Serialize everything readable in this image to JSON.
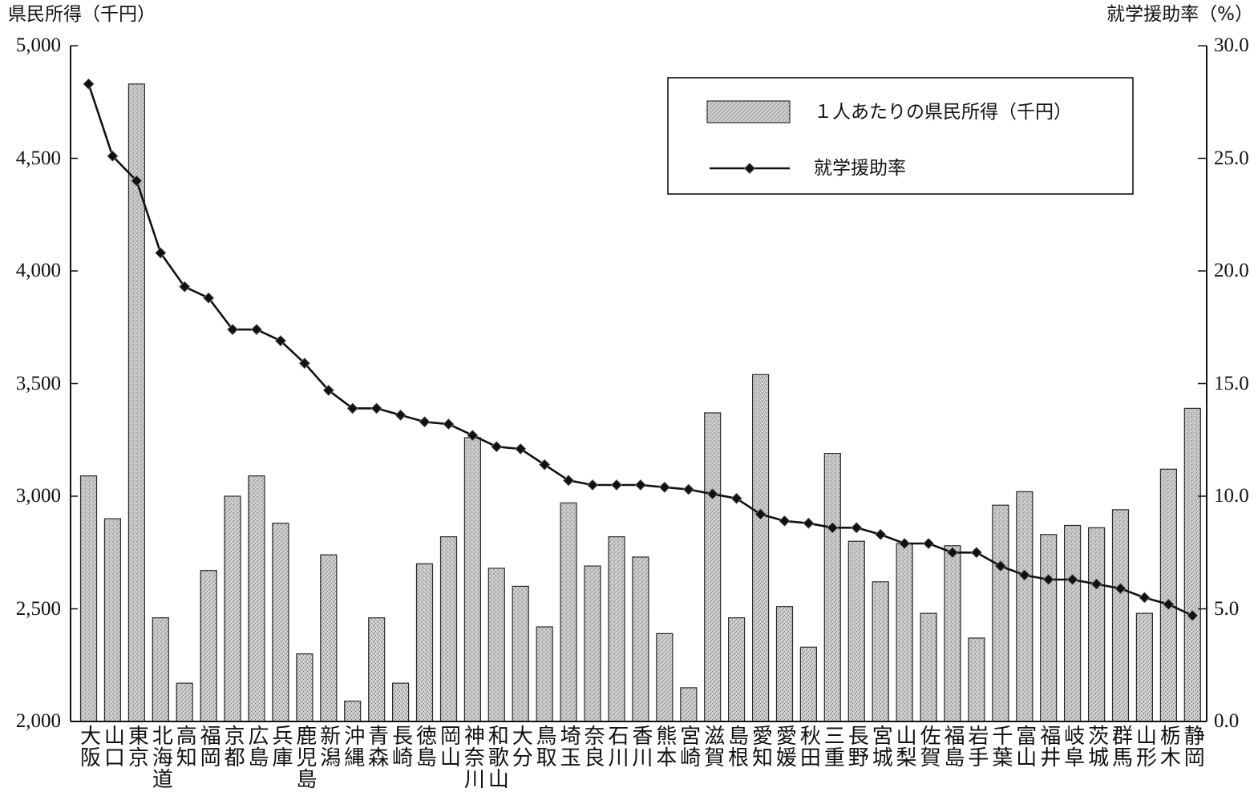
{
  "chart_data": {
    "type": "bar",
    "categories": [
      "大阪",
      "山口",
      "東京",
      "北海道",
      "高知",
      "福岡",
      "京都",
      "広島",
      "兵庫",
      "鹿児島",
      "新潟",
      "沖縄",
      "青森",
      "長崎",
      "徳島",
      "岡山",
      "神奈川",
      "和歌山",
      "大分",
      "鳥取",
      "埼玉",
      "奈良",
      "石川",
      "香川",
      "熊本",
      "宮崎",
      "滋賀",
      "島根",
      "愛知",
      "愛媛",
      "秋田",
      "三重",
      "長野",
      "宮城",
      "山梨",
      "佐賀",
      "福島",
      "岩手",
      "千葉",
      "富山",
      "福井",
      "岐阜",
      "茨城",
      "群馬",
      "山形",
      "栃木",
      "静岡"
    ],
    "series": [
      {
        "name": "１人あたりの県民所得（千円）",
        "type": "bar",
        "axis": "left",
        "values": [
          3090,
          2900,
          4830,
          2460,
          2170,
          2670,
          3000,
          3090,
          2880,
          2300,
          2740,
          2090,
          2460,
          2170,
          2700,
          2820,
          3260,
          2680,
          2600,
          2420,
          2970,
          2690,
          2820,
          2730,
          2390,
          2150,
          3370,
          2460,
          3540,
          2510,
          2330,
          3190,
          2800,
          2620,
          2790,
          2480,
          2780,
          2370,
          2960,
          3020,
          2830,
          2870,
          2860,
          2940,
          2480,
          3120,
          3390
        ]
      },
      {
        "name": "就学援助率",
        "type": "line",
        "axis": "right",
        "values": [
          28.3,
          25.1,
          24.0,
          20.8,
          19.3,
          18.8,
          17.4,
          17.4,
          16.9,
          15.9,
          14.7,
          13.9,
          13.9,
          13.6,
          13.3,
          13.2,
          12.7,
          12.2,
          12.1,
          11.4,
          10.7,
          10.5,
          10.5,
          10.5,
          10.4,
          10.3,
          10.1,
          9.9,
          9.2,
          8.9,
          8.8,
          8.6,
          8.6,
          8.3,
          7.9,
          7.9,
          7.5,
          7.5,
          6.9,
          6.5,
          6.3,
          6.3,
          6.1,
          5.9,
          5.5,
          5.2,
          4.7
        ]
      }
    ],
    "ylabel_left": "県民所得（千円）",
    "ylabel_right": "就学援助率（%）",
    "ylim_left": [
      2000,
      5000
    ],
    "ylim_right": [
      0,
      30
    ],
    "yticks_left": [
      5000,
      4500,
      4000,
      3500,
      3000,
      2500,
      2000
    ],
    "ytick_labels_left": [
      "5,000",
      "4,500",
      "4,000",
      "3,500",
      "3,000",
      "2,500",
      "2,000"
    ],
    "yticks_right": [
      30,
      25,
      20,
      15,
      10,
      5,
      0
    ],
    "ytick_labels_right": [
      "30.0",
      "25.0",
      "20.0",
      "15.0",
      "10.0",
      "5.0",
      "0.0"
    ],
    "legend": "top-right",
    "grid": false,
    "colors": {
      "bar_fill": "#d2d2d2",
      "bar_dots": "#444444",
      "line": "#111111"
    }
  }
}
